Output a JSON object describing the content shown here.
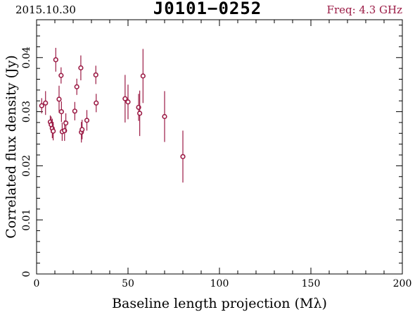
{
  "header": {
    "date": "2015.10.30",
    "source": "J0101−0252",
    "freq": "Freq: 4.3 GHz"
  },
  "colors": {
    "freq_text": "#9b1b45",
    "points": "#9b1b45",
    "axes": "#000000"
  },
  "chart_data": {
    "type": "scatter",
    "title": "J0101−0252",
    "xlabel": "Baseline length projection (Mλ)",
    "ylabel": "Correlated flux density (Jy)",
    "xlim": [
      0,
      200
    ],
    "ylim": [
      0,
      0.047
    ],
    "xticks": [
      0,
      50,
      100,
      150,
      200
    ],
    "yticks": [
      0,
      0.01,
      0.02,
      0.03,
      0.04
    ],
    "xtick_labels": [
      "0",
      "50",
      "100",
      "150",
      "200"
    ],
    "ytick_labels": [
      "0",
      "0.01",
      "0.02",
      "0.03",
      "0.04"
    ],
    "grid": false,
    "legend": "none",
    "series": [
      {
        "points": [
          {
            "x": 2.8,
            "y": 0.0311,
            "err": 0.0014
          },
          {
            "x": 4.9,
            "y": 0.0316,
            "err": 0.0022
          },
          {
            "x": 7.5,
            "y": 0.0281,
            "err": 0.0012
          },
          {
            "x": 8.0,
            "y": 0.0276,
            "err": 0.0015
          },
          {
            "x": 8.6,
            "y": 0.0269,
            "err": 0.0018
          },
          {
            "x": 9.1,
            "y": 0.0264,
            "err": 0.0017
          },
          {
            "x": 10.5,
            "y": 0.0396,
            "err": 0.0022
          },
          {
            "x": 12.3,
            "y": 0.0323,
            "err": 0.0025
          },
          {
            "x": 13.4,
            "y": 0.0367,
            "err": 0.0015
          },
          {
            "x": 13.6,
            "y": 0.03,
            "err": 0.0019
          },
          {
            "x": 14.0,
            "y": 0.0263,
            "err": 0.0017
          },
          {
            "x": 15.3,
            "y": 0.0265,
            "err": 0.0019
          },
          {
            "x": 16.0,
            "y": 0.0279,
            "err": 0.0018
          },
          {
            "x": 20.9,
            "y": 0.0301,
            "err": 0.0017
          },
          {
            "x": 22.0,
            "y": 0.0346,
            "err": 0.0015
          },
          {
            "x": 24.2,
            "y": 0.0381,
            "err": 0.0023
          },
          {
            "x": 24.5,
            "y": 0.0262,
            "err": 0.0019
          },
          {
            "x": 24.9,
            "y": 0.0267,
            "err": 0.0018
          },
          {
            "x": 27.5,
            "y": 0.0284,
            "err": 0.0019
          },
          {
            "x": 32.4,
            "y": 0.0368,
            "err": 0.0017
          },
          {
            "x": 32.6,
            "y": 0.0316,
            "err": 0.0017
          },
          {
            "x": 48.4,
            "y": 0.0324,
            "err": 0.0044
          },
          {
            "x": 50.0,
            "y": 0.0318,
            "err": 0.0032
          },
          {
            "x": 55.8,
            "y": 0.0308,
            "err": 0.0025
          },
          {
            "x": 56.4,
            "y": 0.0297,
            "err": 0.0042
          },
          {
            "x": 58.2,
            "y": 0.0366,
            "err": 0.005
          },
          {
            "x": 70.0,
            "y": 0.0291,
            "err": 0.0047
          },
          {
            "x": 80.0,
            "y": 0.0217,
            "err": 0.0048
          }
        ]
      }
    ]
  }
}
